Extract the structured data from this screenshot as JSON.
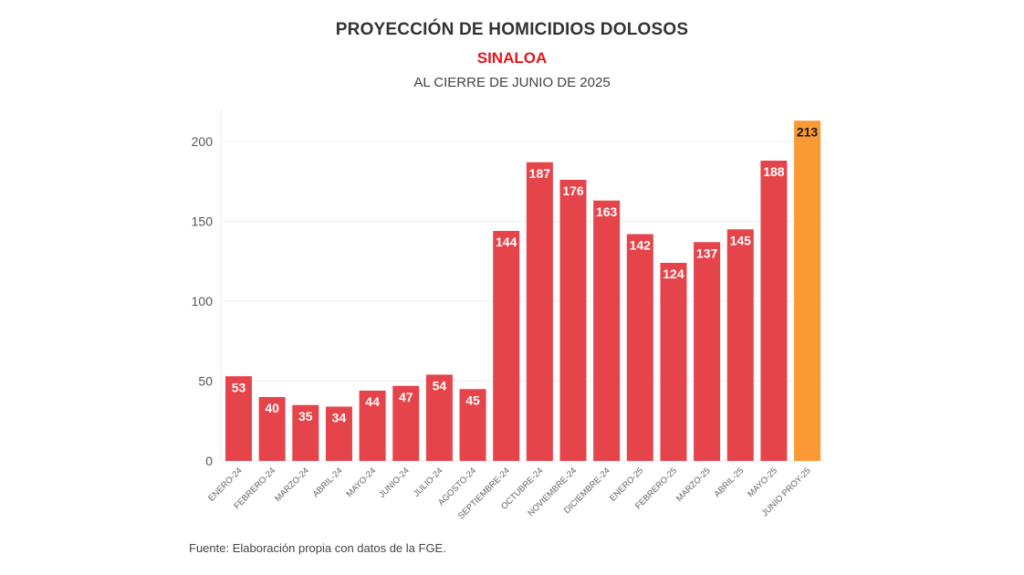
{
  "header": {
    "title": "PROYECCIÓN DE HOMICIDIOS DOLOSOS",
    "subtitle": "SINALOA",
    "subsubtitle": "AL CIERRE DE JUNIO DE 2025"
  },
  "footer": {
    "source": "Fuente: Elaboración propia con datos de la FGE."
  },
  "colors": {
    "bar": "#e5444a",
    "projection_bar": "#fb9a34",
    "subtitle": "#e5151f",
    "label_light": "#ffffff",
    "label_dark": "#1a1a1a"
  },
  "chart_data": {
    "type": "bar",
    "title": "PROYECCIÓN DE HOMICIDIOS DOLOSOS",
    "subtitle": "SINALOA — AL CIERRE DE JUNIO DE 2025",
    "xlabel": "",
    "ylabel": "",
    "ylim": [
      0,
      220
    ],
    "yticks": [
      0,
      50,
      100,
      150,
      200
    ],
    "grid": true,
    "legend": "none",
    "categories": [
      "ENERO-24",
      "FEBRERO-24",
      "MARZO-24",
      "ABRIL-24",
      "MAYO-24",
      "JUNIO-24",
      "JULIO-24",
      "AGOSTO-24",
      "SEPTIEMBRE-24",
      "OCTUBRE-24",
      "NOVIEMBRE-24",
      "DICIEMBRE-24",
      "ENERO-25",
      "FEBRERO-25",
      "MARZO-25",
      "ABRIL-25",
      "MAYO-25",
      "JUNIO PROY-25"
    ],
    "values": [
      53,
      40,
      35,
      34,
      44,
      47,
      54,
      45,
      144,
      187,
      176,
      163,
      142,
      124,
      137,
      145,
      188,
      213
    ],
    "projected": [
      false,
      false,
      false,
      false,
      false,
      false,
      false,
      false,
      false,
      false,
      false,
      false,
      false,
      false,
      false,
      false,
      false,
      true
    ]
  }
}
